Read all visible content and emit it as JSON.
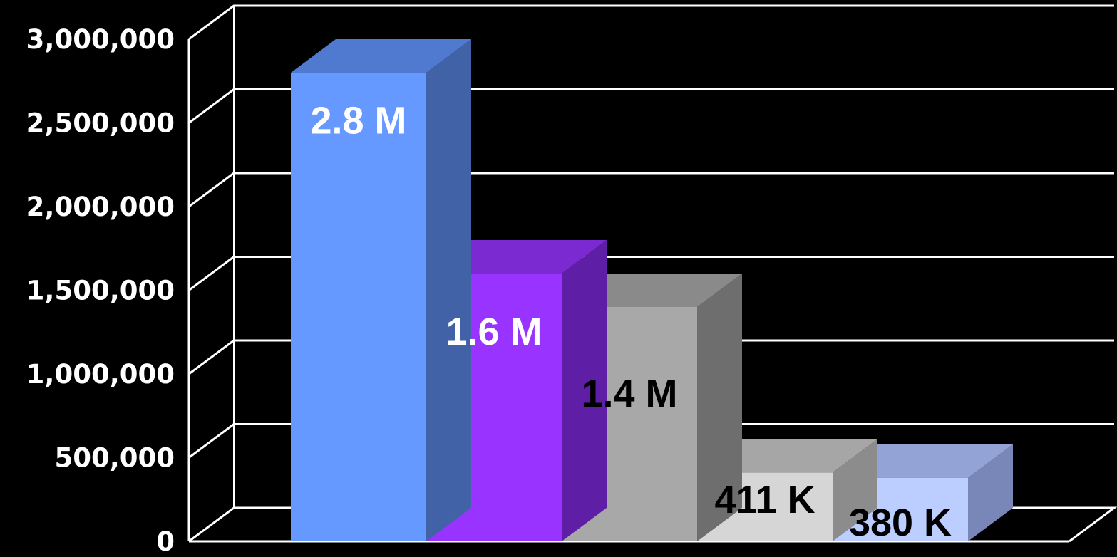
{
  "chart_data": {
    "type": "bar",
    "style": "3d-column",
    "title": "",
    "xlabel": "",
    "ylabel": "",
    "ylim": [
      0,
      3000000
    ],
    "yticks": [
      0,
      500000,
      1000000,
      1500000,
      2000000,
      2500000,
      3000000
    ],
    "ytick_labels": [
      "0",
      "500,000",
      "1,000,000",
      "1,500,000",
      "2,000,000",
      "2,500,000",
      "3,000,000"
    ],
    "grid": true,
    "legend": "none",
    "bars": [
      {
        "value": 2800000,
        "label": "2.8 M",
        "front": "#6699ff",
        "top": "#4f7ad0",
        "side": "#4262a8",
        "text_color": "#ffffff"
      },
      {
        "value": 1600000,
        "label": "1.6 M",
        "front": "#9933ff",
        "top": "#7a2ad0",
        "side": "#5e1fa6",
        "text_color": "#ffffff"
      },
      {
        "value": 1400000,
        "label": "1.4 M",
        "front": "#a8a8a8",
        "top": "#8a8a8a",
        "side": "#6e6e6e",
        "text_color": "#000000"
      },
      {
        "value": 411000,
        "label": "411 K",
        "front": "#d6d6d6",
        "top": "#a6a6a6",
        "side": "#8c8c8c",
        "text_color": "#000000"
      },
      {
        "value": 380000,
        "label": "380 K",
        "front": "#bccdff",
        "top": "#93a3d6",
        "side": "#7887b8",
        "text_color": "#000000"
      }
    ],
    "colors": {
      "background": "#000000",
      "gridline": "#ffffff",
      "tick_text": "#ffffff"
    }
  }
}
